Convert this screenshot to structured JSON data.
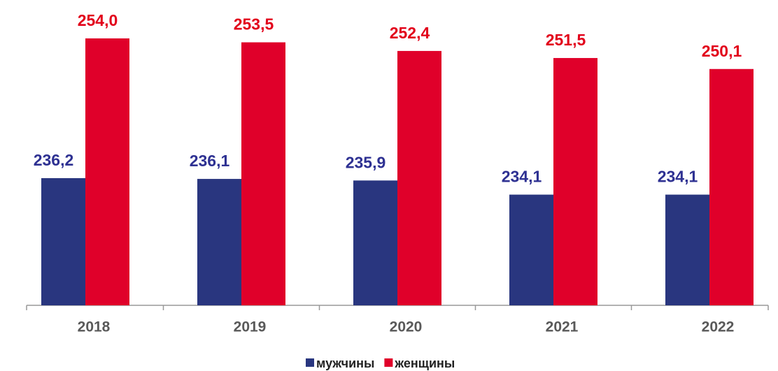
{
  "chart_data": {
    "type": "bar",
    "categories": [
      "2018",
      "2019",
      "2020",
      "2021",
      "2022"
    ],
    "series": [
      {
        "name": "мужчины",
        "color": "#29367f",
        "label_color": "#2e3192",
        "values": [
          236.2,
          236.1,
          235.9,
          234.1,
          234.1
        ],
        "value_labels": [
          "236,2",
          "236,1",
          "235,9",
          "234,1",
          "234,1"
        ]
      },
      {
        "name": "женщины",
        "color": "#e0002a",
        "label_color": "#e2001a",
        "values": [
          254.0,
          253.5,
          252.4,
          251.5,
          250.1
        ],
        "value_labels": [
          "254,0",
          "253,5",
          "252,4",
          "251,5",
          "250,1"
        ]
      }
    ],
    "ylim": [
      220,
      258
    ],
    "legend": "bottom"
  }
}
